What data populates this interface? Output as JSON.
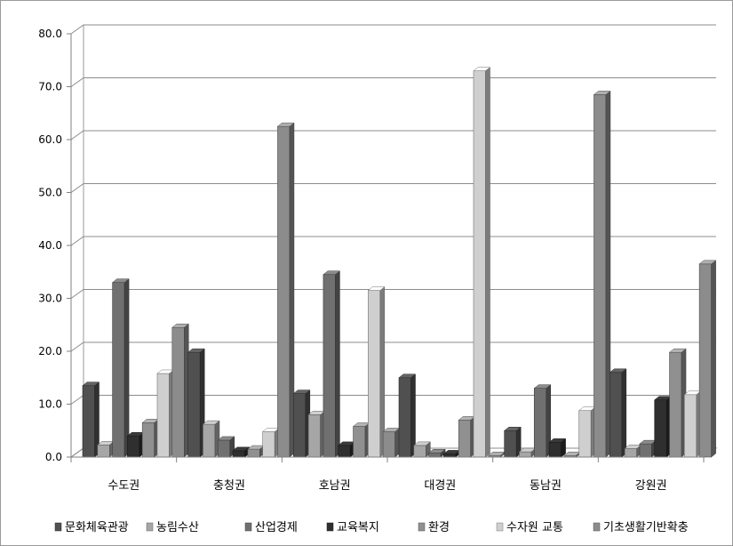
{
  "chart_data": {
    "type": "bar",
    "title": "",
    "xlabel": "",
    "ylabel": "",
    "ylim": [
      0,
      80
    ],
    "yticks": [
      "0.0",
      "10.0",
      "20.0",
      "30.0",
      "40.0",
      "50.0",
      "60.0",
      "70.0",
      "80.0"
    ],
    "grid": true,
    "legend_position": "bottom",
    "style": "3d-clustered-column",
    "categories": [
      "수도권",
      "충청권",
      "호남권",
      "대경권",
      "동남권",
      "강원권"
    ],
    "series": [
      {
        "name": "문화체육관광",
        "color": "#505050",
        "values": [
          13.5,
          19.8,
          12.0,
          15.0,
          5.0,
          16.0
        ]
      },
      {
        "name": "농림수산",
        "color": "#a6a6a6",
        "values": [
          2.3,
          6.2,
          8.0,
          2.2,
          1.0,
          1.6
        ]
      },
      {
        "name": "산업경제",
        "color": "#707070",
        "values": [
          33.0,
          3.2,
          34.5,
          0.8,
          13.0,
          2.5
        ]
      },
      {
        "name": "교육복지",
        "color": "#2f2f2f",
        "values": [
          4.0,
          1.2,
          2.2,
          0.6,
          2.8,
          10.8
        ]
      },
      {
        "name": "환경",
        "color": "#909090",
        "values": [
          6.5,
          1.5,
          5.8,
          7.0,
          0.3,
          19.8
        ]
      },
      {
        "name": "수자원 교통",
        "color": "#cfcfcf",
        "values": [
          15.8,
          4.8,
          31.5,
          73.0,
          8.8,
          11.8
        ]
      },
      {
        "name": "기초생활기반확충",
        "color": "#8c8c8c",
        "values": [
          24.5,
          62.5,
          4.8,
          0.3,
          68.5,
          36.5
        ]
      }
    ]
  }
}
